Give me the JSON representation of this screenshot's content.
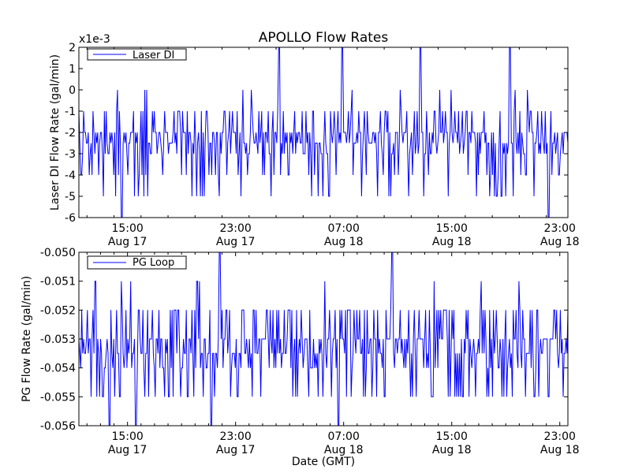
{
  "figure": {
    "title": "APOLLO Flow Rates",
    "xlabel": "Date (GMT)",
    "line_color": "#0000ff"
  },
  "chart_data": [
    {
      "type": "line",
      "id": "top",
      "series": [
        {
          "name": "Laser DI"
        }
      ],
      "ylabel": "Laser DI Flow Rate (gal/min)",
      "offset_label": "x1e-3",
      "ylim": [
        -6,
        2
      ],
      "yticks": [
        "-6",
        "-5",
        "-4",
        "-3",
        "-2",
        "-1",
        "0",
        "1",
        "2"
      ],
      "xticks": [
        {
          "time": "15:00",
          "date": "Aug 17"
        },
        {
          "time": "23:00",
          "date": "Aug 17"
        },
        {
          "time": "07:00",
          "date": "Aug 18"
        },
        {
          "time": "15:00",
          "date": "Aug 18"
        },
        {
          "time": "23:00",
          "date": "Aug 18"
        }
      ],
      "x_range_hours": [
        -3.6,
        32.6
      ],
      "baseline": -2.5,
      "band": [
        -3,
        -1
      ],
      "spikes_low": [
        -4,
        -5
      ],
      "extremes": [
        {
          "x": -0.4,
          "y": -6
        },
        {
          "x": 11.2,
          "y": 2
        },
        {
          "x": 15.9,
          "y": 2
        },
        {
          "x": 21.7,
          "y": 2
        },
        {
          "x": 28.3,
          "y": 2
        },
        {
          "x": 31.2,
          "y": -6
        }
      ]
    },
    {
      "type": "line",
      "id": "bottom",
      "series": [
        {
          "name": "PG Loop"
        }
      ],
      "ylabel": "PG Flow Rate (gal/min)",
      "ylim": [
        -0.056,
        -0.05
      ],
      "yticks": [
        "-0.056",
        "-0.055",
        "-0.054",
        "-0.053",
        "-0.052",
        "-0.051",
        "-0.050"
      ],
      "xticks": [
        {
          "time": "15:00",
          "date": "Aug 17"
        },
        {
          "time": "23:00",
          "date": "Aug 17"
        },
        {
          "time": "07:00",
          "date": "Aug 18"
        },
        {
          "time": "15:00",
          "date": "Aug 18"
        },
        {
          "time": "23:00",
          "date": "Aug 18"
        }
      ],
      "x_range_hours": [
        -3.6,
        32.6
      ],
      "baseline": -0.0535,
      "band": [
        -0.054,
        -0.052
      ],
      "spikes_low": [
        -0.055
      ],
      "extremes": [
        {
          "x": -1.3,
          "y": -0.056
        },
        {
          "x": 0.6,
          "y": -0.056
        },
        {
          "x": 6.2,
          "y": -0.056
        },
        {
          "x": 6.8,
          "y": -0.05
        },
        {
          "x": 15.6,
          "y": -0.056
        },
        {
          "x": 19.6,
          "y": -0.05
        }
      ]
    }
  ]
}
